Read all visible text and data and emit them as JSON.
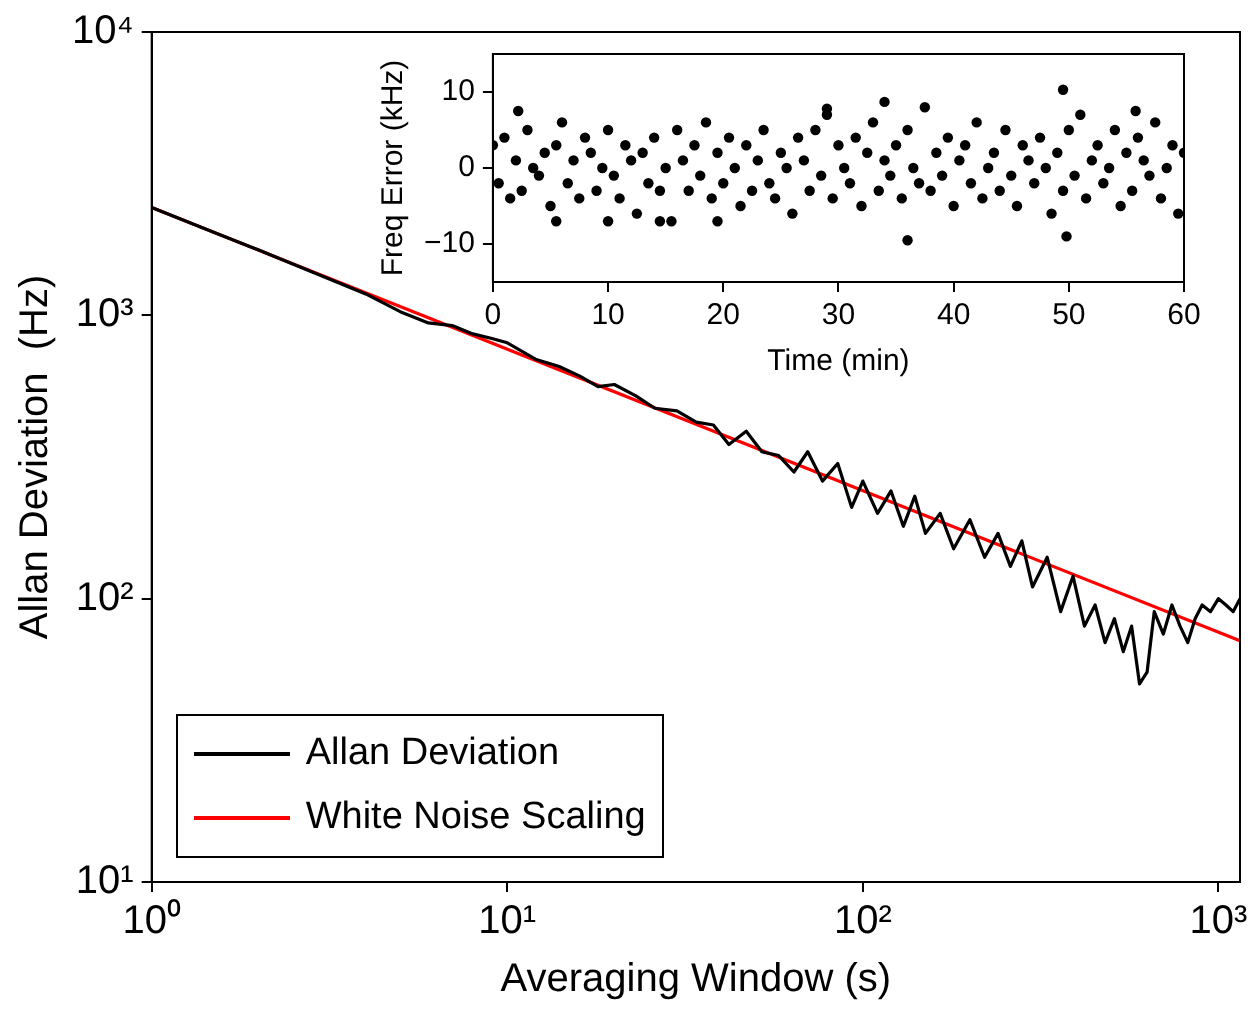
{
  "chart_data": [
    {
      "type": "line",
      "xlabel": "Averaging Window (s)",
      "ylabel": "Allan Deviation  (Hz)",
      "log": "xy",
      "xlim": [
        1,
        1150
      ],
      "ylim": [
        10,
        10000
      ],
      "xticks": [
        {
          "value": 1,
          "label": "10⁰"
        },
        {
          "value": 10,
          "label": "10¹"
        },
        {
          "value": 100,
          "label": "10²"
        },
        {
          "value": 1000,
          "label": "10³"
        }
      ],
      "yticks": [
        {
          "value": 10,
          "label": "10¹"
        },
        {
          "value": 100,
          "label": "10²"
        },
        {
          "value": 1000,
          "label": "10³"
        },
        {
          "value": 10000,
          "label": "10⁴"
        }
      ],
      "legend": "bottom left",
      "series": [
        {
          "name": "Allan Deviation",
          "color": "#000000",
          "x": [
            1,
            1.5,
            2,
            3,
            4,
            5,
            6,
            7,
            8,
            9,
            10,
            12,
            14,
            16,
            18,
            20,
            23,
            26,
            30,
            34,
            38,
            42,
            47,
            52,
            58,
            64,
            70,
            77,
            85,
            93,
            100,
            110,
            120,
            130,
            140,
            150,
            165,
            180,
            200,
            220,
            240,
            260,
            280,
            300,
            330,
            360,
            390,
            420,
            450,
            480,
            510,
            540,
            570,
            600,
            630,
            660,
            700,
            740,
            780,
            820,
            860,
            900,
            950,
            1000,
            1050,
            1100,
            1150
          ],
          "values": [
            2400,
            1960,
            1700,
            1380,
            1190,
            1030,
            940,
            920,
            860,
            830,
            800,
            700,
            660,
            610,
            560,
            570,
            520,
            470,
            460,
            420,
            410,
            350,
            390,
            330,
            320,
            280,
            330,
            260,
            300,
            210,
            260,
            200,
            240,
            180,
            230,
            170,
            200,
            150,
            190,
            140,
            170,
            130,
            160,
            110,
            140,
            90,
            120,
            80,
            95,
            70,
            85,
            65,
            80,
            50,
            55,
            90,
            75,
            95,
            80,
            70,
            85,
            95,
            90,
            100,
            95,
            90,
            100
          ]
        },
        {
          "name": "White Noise Scaling",
          "color": "#ff0000",
          "x": [
            1,
            1150
          ],
          "values": [
            2400,
            71
          ]
        }
      ]
    },
    {
      "type": "scatter",
      "xlabel": "Time (min)",
      "ylabel": "Freq Error (kHz)",
      "xlim": [
        0,
        60
      ],
      "ylim": [
        -15,
        15
      ],
      "xticks": [
        0,
        10,
        20,
        30,
        40,
        50,
        60
      ],
      "yticks": [
        {
          "value": -10,
          "label": "−10"
        },
        0,
        10
      ],
      "marker": "circle",
      "series": [
        {
          "color": "#000000",
          "x": [
            0,
            0.5,
            1,
            1.5,
            2,
            2.5,
            3,
            3.5,
            4,
            4.5,
            5,
            5.5,
            6,
            6.5,
            7,
            7.5,
            8,
            8.5,
            9,
            9.5,
            10,
            10.5,
            11,
            11.5,
            12,
            12.5,
            13,
            13.5,
            14,
            14.5,
            15,
            15.5,
            16,
            16.5,
            17,
            17.5,
            18,
            18.5,
            19,
            19.5,
            20,
            20.5,
            21,
            21.5,
            22,
            22.5,
            23,
            23.5,
            24,
            24.5,
            25,
            25.5,
            26,
            26.5,
            27,
            27.5,
            28,
            28.5,
            29,
            29.5,
            30,
            30.5,
            31,
            31.5,
            32,
            32.5,
            33,
            33.5,
            34,
            34.5,
            35,
            35.5,
            36,
            36.5,
            37,
            37.5,
            38,
            38.5,
            39,
            39.5,
            40,
            40.5,
            41,
            41.5,
            42,
            42.5,
            43,
            43.5,
            44,
            44.5,
            45,
            45.5,
            46,
            46.5,
            47,
            47.5,
            48,
            48.5,
            49,
            49.5,
            50,
            50.5,
            51,
            51.5,
            52,
            52.5,
            53,
            53.5,
            54,
            54.5,
            55,
            55.5,
            56,
            56.5,
            57,
            57.5,
            58,
            58.5,
            59,
            59.5,
            60,
            14.5,
            36,
            49.5,
            49.8,
            34,
            29,
            2.2,
            55.8,
            5.5,
            19.5,
            10
          ],
          "values": [
            3,
            -2,
            4,
            -4,
            1,
            -3,
            5,
            0,
            -1,
            2,
            -5,
            3,
            6,
            -2,
            1,
            -4,
            4,
            2,
            -3,
            0,
            5,
            -1,
            -4,
            3,
            1,
            -6,
            2,
            -2,
            4,
            -3,
            0,
            -7,
            5,
            1,
            -3,
            3,
            -1,
            6,
            -4,
            2,
            -2,
            4,
            0,
            -5,
            3,
            -3,
            1,
            5,
            -2,
            -4,
            2,
            0,
            -6,
            4,
            1,
            -3,
            5,
            -1,
            7,
            -4,
            3,
            0,
            -2,
            4,
            -5,
            2,
            6,
            -3,
            1,
            -1,
            3,
            -4,
            5,
            0,
            -2,
            8,
            -3,
            2,
            -1,
            4,
            -5,
            1,
            3,
            -2,
            6,
            -4,
            0,
            2,
            -3,
            5,
            -1,
            -5,
            3,
            1,
            -2,
            4,
            0,
            -6,
            2,
            -3,
            5,
            -1,
            7,
            -4,
            1,
            3,
            -2,
            0,
            5,
            -5,
            2,
            -3,
            4,
            1,
            -1,
            6,
            -4,
            0,
            3,
            -6,
            2,
            -7,
            -9.5,
            10.3,
            -9,
            8.7,
            7.8,
            7.5,
            7.5,
            -7,
            -7,
            -7
          ]
        }
      ]
    }
  ]
}
